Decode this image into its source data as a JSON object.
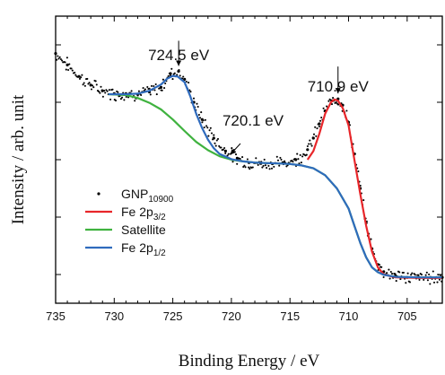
{
  "chart_data": {
    "type": "line",
    "title": "",
    "xlabel": "Binding Energy / eV",
    "ylabel": "Intensity / arb. unit",
    "xlim": [
      735,
      702
    ],
    "x_reversed": true,
    "ylim": [
      0,
      1
    ],
    "y_ticks_labeled": false,
    "grid": false,
    "legend": "lower-left",
    "x_ticks": [
      "735",
      "730",
      "725",
      "720",
      "715",
      "710",
      "705"
    ],
    "x_tick_values": [
      735,
      730,
      725,
      720,
      715,
      710,
      705
    ],
    "series": [
      {
        "name": "GNP",
        "name_sub": "10900",
        "kind": "scatter",
        "color": "#000000",
        "points": [
          [
            735,
            0.87
          ],
          [
            734,
            0.83
          ],
          [
            733,
            0.79
          ],
          [
            732,
            0.76
          ],
          [
            731,
            0.74
          ],
          [
            730,
            0.73
          ],
          [
            729,
            0.73
          ],
          [
            728,
            0.728
          ],
          [
            727,
            0.736
          ],
          [
            726,
            0.752
          ],
          [
            725.2,
            0.8
          ],
          [
            724.5,
            0.808
          ],
          [
            724,
            0.78
          ],
          [
            723.2,
            0.7
          ],
          [
            722.5,
            0.64
          ],
          [
            721.5,
            0.575
          ],
          [
            720.5,
            0.53
          ],
          [
            719.5,
            0.505
          ],
          [
            718.5,
            0.49
          ],
          [
            717.5,
            0.487
          ],
          [
            716.5,
            0.486
          ],
          [
            715.5,
            0.49
          ],
          [
            714.5,
            0.5
          ],
          [
            713.5,
            0.535
          ],
          [
            713,
            0.575
          ],
          [
            712.5,
            0.625
          ],
          [
            712,
            0.67
          ],
          [
            711.4,
            0.705
          ],
          [
            710.9,
            0.712
          ],
          [
            710.5,
            0.69
          ],
          [
            710,
            0.63
          ],
          [
            709.5,
            0.52
          ],
          [
            709,
            0.4
          ],
          [
            708.5,
            0.28
          ],
          [
            708,
            0.19
          ],
          [
            707.5,
            0.135
          ],
          [
            707,
            0.11
          ],
          [
            706,
            0.096
          ],
          [
            705,
            0.09
          ],
          [
            704,
            0.09
          ],
          [
            703,
            0.09
          ],
          [
            702,
            0.09
          ]
        ]
      },
      {
        "name": "Fe 2p",
        "name_sub": "3/2",
        "kind": "line",
        "color": "#e8262a",
        "points": [
          [
            713.5,
            0.5
          ],
          [
            713,
            0.53
          ],
          [
            712.5,
            0.59
          ],
          [
            712,
            0.66
          ],
          [
            711.5,
            0.7
          ],
          [
            711.2,
            0.71
          ],
          [
            710.9,
            0.705
          ],
          [
            710.5,
            0.68
          ],
          [
            710,
            0.62
          ],
          [
            709.5,
            0.5
          ],
          [
            709,
            0.38
          ],
          [
            708.5,
            0.27
          ],
          [
            708,
            0.18
          ],
          [
            707.5,
            0.125
          ],
          [
            707,
            0.1
          ],
          [
            706,
            0.09
          ],
          [
            704,
            0.088
          ],
          [
            702,
            0.088
          ]
        ]
      },
      {
        "name": "Satellite",
        "kind": "line",
        "color": "#3fb23f",
        "points": [
          [
            730.5,
            0.728
          ],
          [
            729,
            0.725
          ],
          [
            728,
            0.715
          ],
          [
            727,
            0.698
          ],
          [
            726,
            0.675
          ],
          [
            725,
            0.64
          ],
          [
            724,
            0.6
          ],
          [
            723,
            0.562
          ],
          [
            722,
            0.533
          ],
          [
            721,
            0.512
          ],
          [
            720,
            0.5
          ],
          [
            719,
            0.494
          ],
          [
            718,
            0.49
          ],
          [
            717,
            0.488
          ],
          [
            716,
            0.487
          ],
          [
            715,
            0.485
          ],
          [
            714,
            0.48
          ],
          [
            713,
            0.47
          ],
          [
            712,
            0.446
          ],
          [
            711,
            0.4
          ],
          [
            710,
            0.33
          ],
          [
            709.5,
            0.27
          ],
          [
            709,
            0.21
          ],
          [
            708.5,
            0.16
          ],
          [
            708,
            0.125
          ],
          [
            707.5,
            0.108
          ],
          [
            707,
            0.099
          ],
          [
            706,
            0.092
          ],
          [
            704,
            0.09
          ],
          [
            702,
            0.09
          ]
        ]
      },
      {
        "name": "Fe 2p",
        "name_sub": "1/2",
        "kind": "line",
        "color": "#2f6bbd",
        "points": [
          [
            730.5,
            0.728
          ],
          [
            729,
            0.728
          ],
          [
            728,
            0.73
          ],
          [
            727,
            0.74
          ],
          [
            726,
            0.762
          ],
          [
            725.5,
            0.782
          ],
          [
            725,
            0.792
          ],
          [
            724.6,
            0.79
          ],
          [
            724,
            0.77
          ],
          [
            723.5,
            0.72
          ],
          [
            723,
            0.66
          ],
          [
            722.5,
            0.61
          ],
          [
            722,
            0.57
          ],
          [
            721.5,
            0.54
          ],
          [
            721,
            0.52
          ],
          [
            720,
            0.502
          ],
          [
            719,
            0.494
          ],
          [
            718,
            0.49
          ],
          [
            717,
            0.488
          ],
          [
            716,
            0.487
          ],
          [
            715,
            0.485
          ],
          [
            714,
            0.48
          ],
          [
            713,
            0.47
          ],
          [
            712,
            0.446
          ],
          [
            711,
            0.4
          ],
          [
            710,
            0.33
          ],
          [
            709.5,
            0.27
          ],
          [
            709,
            0.21
          ],
          [
            708.5,
            0.16
          ],
          [
            708,
            0.125
          ],
          [
            707.5,
            0.108
          ],
          [
            707,
            0.099
          ],
          [
            706,
            0.092
          ],
          [
            704,
            0.09
          ],
          [
            702,
            0.09
          ]
        ]
      }
    ],
    "annotations": [
      {
        "text": "724.5 eV",
        "x": 724.5,
        "y": 0.808
      },
      {
        "text": "720.1 eV",
        "x": 720.1,
        "y": 0.505
      },
      {
        "text": "710.9 eV",
        "x": 710.9,
        "y": 0.712
      }
    ]
  }
}
